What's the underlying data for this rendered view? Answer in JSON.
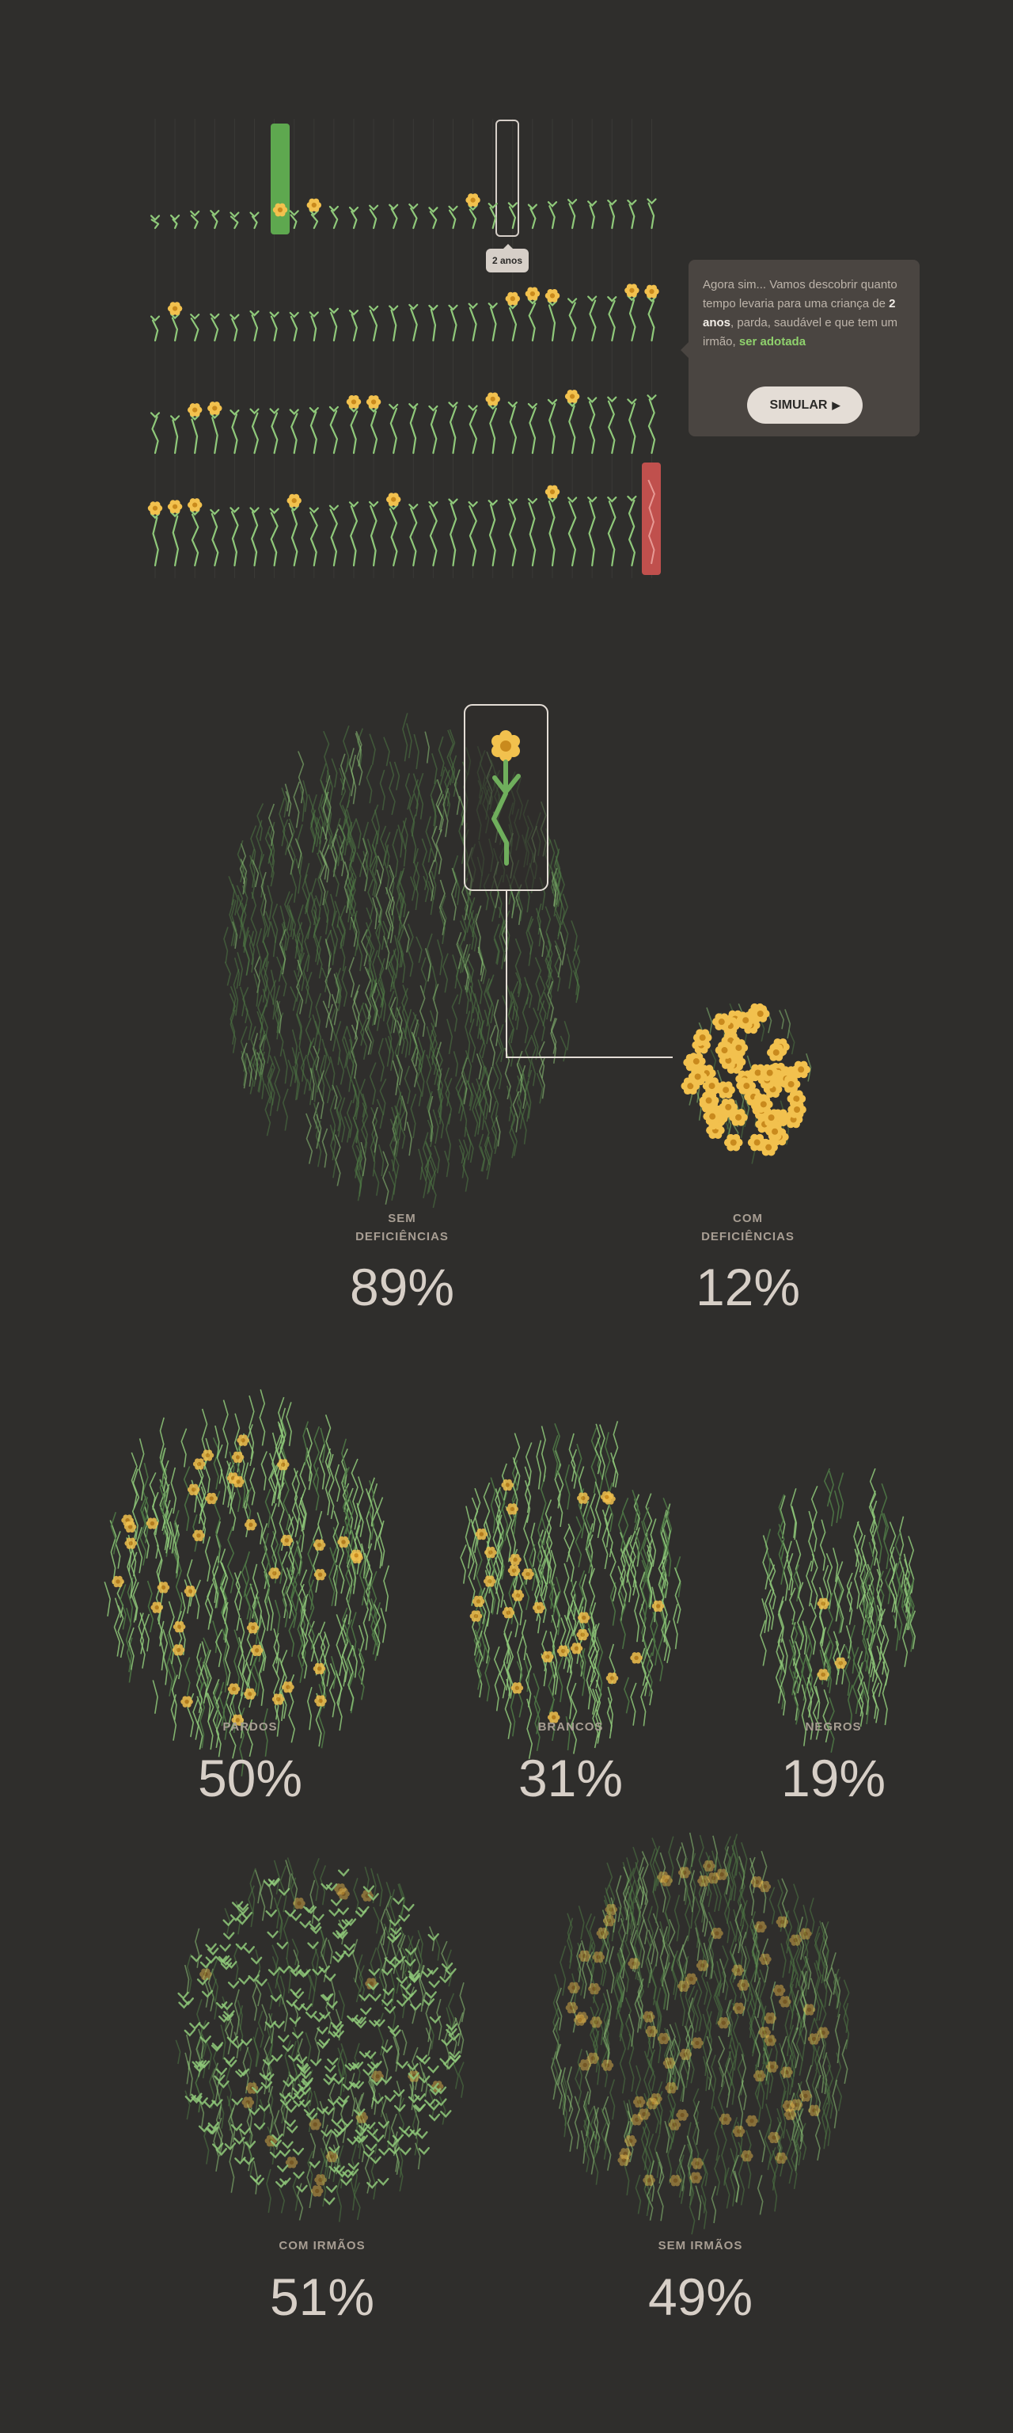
{
  "popup": {
    "text_before": "Agora sim... Vamos descobrir quanto tempo levaria para uma criança de ",
    "age_bold": "2 anos",
    "text_middle": ", parda, saudável e que tem um irmão, ",
    "adopt_text": "ser adotada",
    "button_label": "SIMULAR",
    "button_icon": "play-icon"
  },
  "timeline": {
    "tooltip": "2 anos",
    "start_marker_color": "#5ea84f",
    "end_marker_color": "#c0504d"
  },
  "colors": {
    "background": "#2f2e2c",
    "stem": "#8fc97a",
    "stem_dim": "#4f7a46",
    "flower": "#f2c14e",
    "flower_center": "#c98a1d"
  },
  "groups": [
    {
      "label": "SEM\nDEFICIÊNCIAS",
      "value": "89%"
    },
    {
      "label": "COM\nDEFICIÊNCIAS",
      "value": "12%"
    },
    {
      "label": "PARDOS",
      "value": "50%"
    },
    {
      "label": "BRANCOS",
      "value": "31%"
    },
    {
      "label": "NEGROS",
      "value": "19%"
    },
    {
      "label": "COM IRMÃOS",
      "value": "51%"
    },
    {
      "label": "SEM IRMÃOS",
      "value": "49%"
    }
  ]
}
